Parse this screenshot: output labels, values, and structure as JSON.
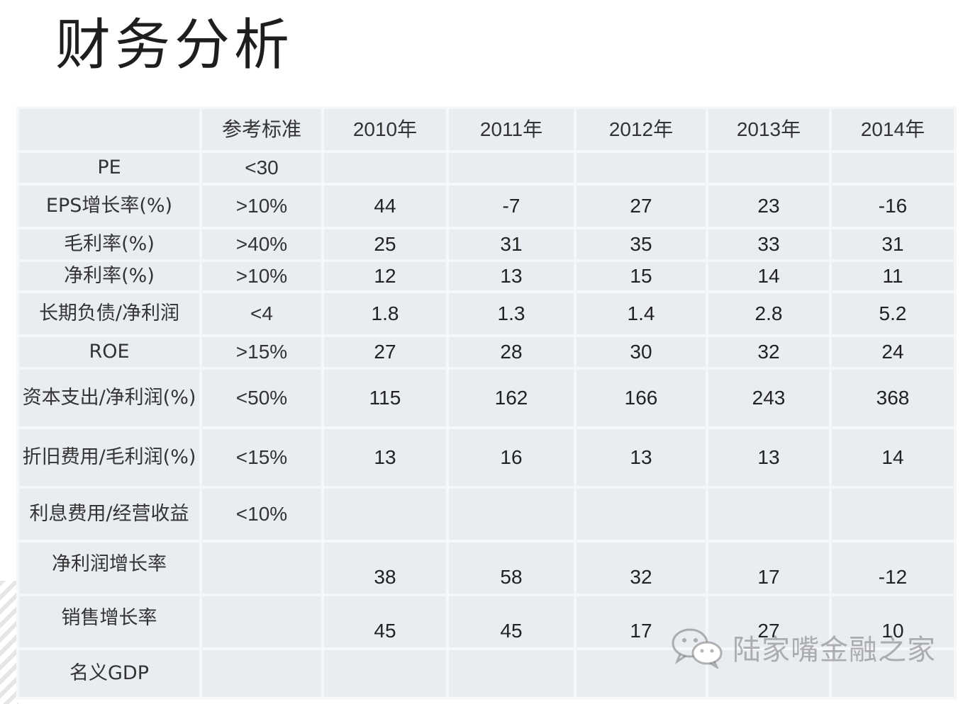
{
  "title": "财务分析",
  "table": {
    "header": [
      "",
      "参考标准",
      "2010年",
      "2011年",
      "2012年",
      "2013年",
      "2014年"
    ],
    "rows": [
      {
        "label": "PE",
        "ref": "<30",
        "values": [
          "",
          "",
          "",
          "",
          ""
        ]
      },
      {
        "label": "EPS增长率(%)",
        "ref": ">10%",
        "values": [
          "44",
          "-7",
          "27",
          "23",
          "-16"
        ]
      },
      {
        "label": "毛利率(%)",
        "ref": ">40%",
        "values": [
          "25",
          "31",
          "35",
          "33",
          "31"
        ]
      },
      {
        "label": "净利率(%)",
        "ref": ">10%",
        "values": [
          "12",
          "13",
          "15",
          "14",
          "11"
        ]
      },
      {
        "label": "长期负债/净利润",
        "ref": "<4",
        "values": [
          "1.8",
          "1.3",
          "1.4",
          "2.8",
          "5.2"
        ]
      },
      {
        "label": "ROE",
        "ref": ">15%",
        "values": [
          "27",
          "28",
          "30",
          "32",
          "24"
        ]
      },
      {
        "label": "资本支出/净利润(%)",
        "ref": "<50%",
        "values": [
          "115",
          "162",
          "166",
          "243",
          "368"
        ]
      },
      {
        "label": "折旧费用/毛利润(%)",
        "ref": "<15%",
        "values": [
          "13",
          "16",
          "13",
          "13",
          "14"
        ]
      },
      {
        "label": "利息费用/经营收益",
        "ref": "<10%",
        "values": [
          "",
          "",
          "",
          "",
          ""
        ]
      },
      {
        "label": "净利润增长率",
        "ref": "",
        "values": [
          "38",
          "58",
          "32",
          "17",
          "-12"
        ]
      },
      {
        "label": "销售增长率",
        "ref": "",
        "values": [
          "45",
          "45",
          "17",
          "27",
          "10"
        ]
      },
      {
        "label": "名义GDP",
        "ref": "",
        "values": [
          "",
          "",
          "",
          "",
          ""
        ]
      }
    ]
  },
  "watermark": {
    "text": "陆家嘴金融之家",
    "icon": "wechat-icon"
  }
}
